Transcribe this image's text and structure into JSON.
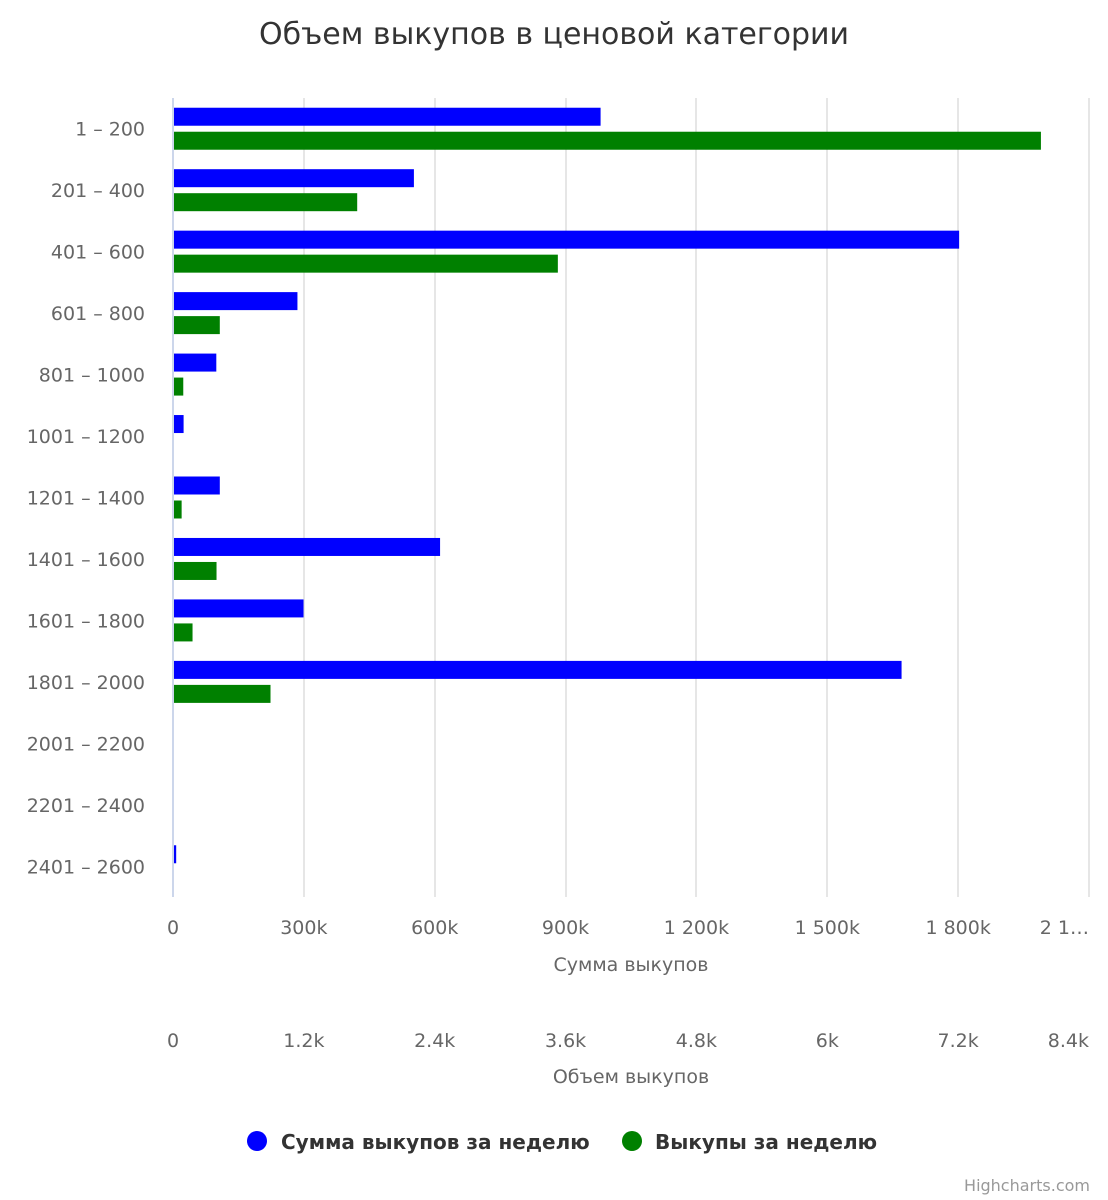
{
  "chart_data": {
    "type": "bar",
    "title": "Объем выкупов в ценовой категории",
    "categories": [
      "1 – 200",
      "201 – 400",
      "401 – 600",
      "601 – 800",
      "801 – 1000",
      "1001 – 1200",
      "1201 – 1400",
      "1401 – 1600",
      "1601 – 1800",
      "1801 – 2000",
      "2001 – 2200",
      "2201 – 2400",
      "2401 – 2600"
    ],
    "axes": [
      {
        "id": "sum",
        "title": "Сумма выкупов",
        "range": [
          0,
          2100000
        ],
        "ticks": [
          0,
          300000,
          600000,
          900000,
          1200000,
          1500000,
          1800000,
          2100000
        ],
        "tick_labels": [
          "0",
          "300k",
          "600k",
          "900k",
          "1 200k",
          "1 500k",
          "1 800k",
          "2 1…"
        ]
      },
      {
        "id": "vol",
        "title": "Объем выкупов",
        "range": [
          0,
          8400
        ],
        "ticks": [
          0,
          1200,
          2400,
          3600,
          4800,
          6000,
          7200,
          8400
        ],
        "tick_labels": [
          "0",
          "1.2k",
          "2.4k",
          "3.6k",
          "4.8k",
          "6k",
          "7.2k",
          "8.4k"
        ]
      }
    ],
    "series": [
      {
        "name": "Сумма выкупов за неделю",
        "axis": "sum",
        "color": "#0000ff",
        "values": [
          978000,
          550000,
          1800000,
          283000,
          97000,
          22000,
          105000,
          610000,
          297000,
          1668000,
          0,
          0,
          5000
        ]
      },
      {
        "name": "Выкупы за неделю",
        "axis": "vol",
        "color": "#008000",
        "values": [
          7950,
          1680,
          3520,
          420,
          85,
          0,
          70,
          390,
          170,
          885,
          0,
          0,
          0
        ]
      }
    ]
  },
  "credits": "Highcharts.com"
}
